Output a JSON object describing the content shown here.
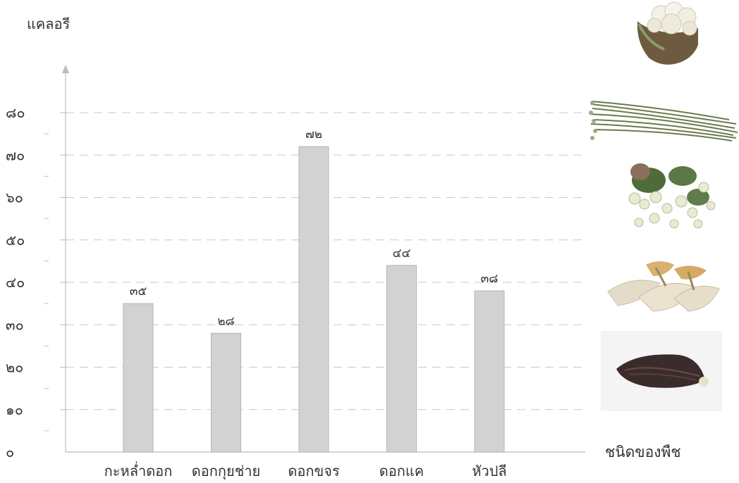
{
  "chart_data": {
    "type": "bar",
    "ylabel": "แคลอรี",
    "xlabel": "ชนิดของพืช",
    "categories": [
      "กะหล่ำดอก",
      "ดอกกุยช่าย",
      "ดอกขจร",
      "ดอกแค",
      "หัวปลี"
    ],
    "values": [
      35,
      28,
      72,
      44,
      38
    ],
    "value_labels": [
      "๓๕",
      "๒๘",
      "๗๒",
      "๔๔",
      "๓๘"
    ],
    "ylim": [
      0,
      80
    ],
    "y_ticks": [
      0,
      10,
      20,
      30,
      40,
      50,
      60,
      70,
      80
    ],
    "y_tick_labels": [
      "๐",
      "๑๐",
      "๒๐",
      "๓๐",
      "๔๐",
      "๕๐",
      "๖๐",
      "๗๐",
      "๘๐"
    ],
    "grid": true,
    "bar_color": "#d2d2d2",
    "bar_stroke": "#b4b4b4"
  },
  "images": {
    "cauliflower": "cauliflower-photo",
    "garlic_chives": "garlic-chive-flowers-photo",
    "cowslip_creeper": "cowslip-creeper-flowers-photo",
    "sesbania": "sesbania-flowers-photo",
    "banana_blossom": "banana-blossom-photo"
  }
}
